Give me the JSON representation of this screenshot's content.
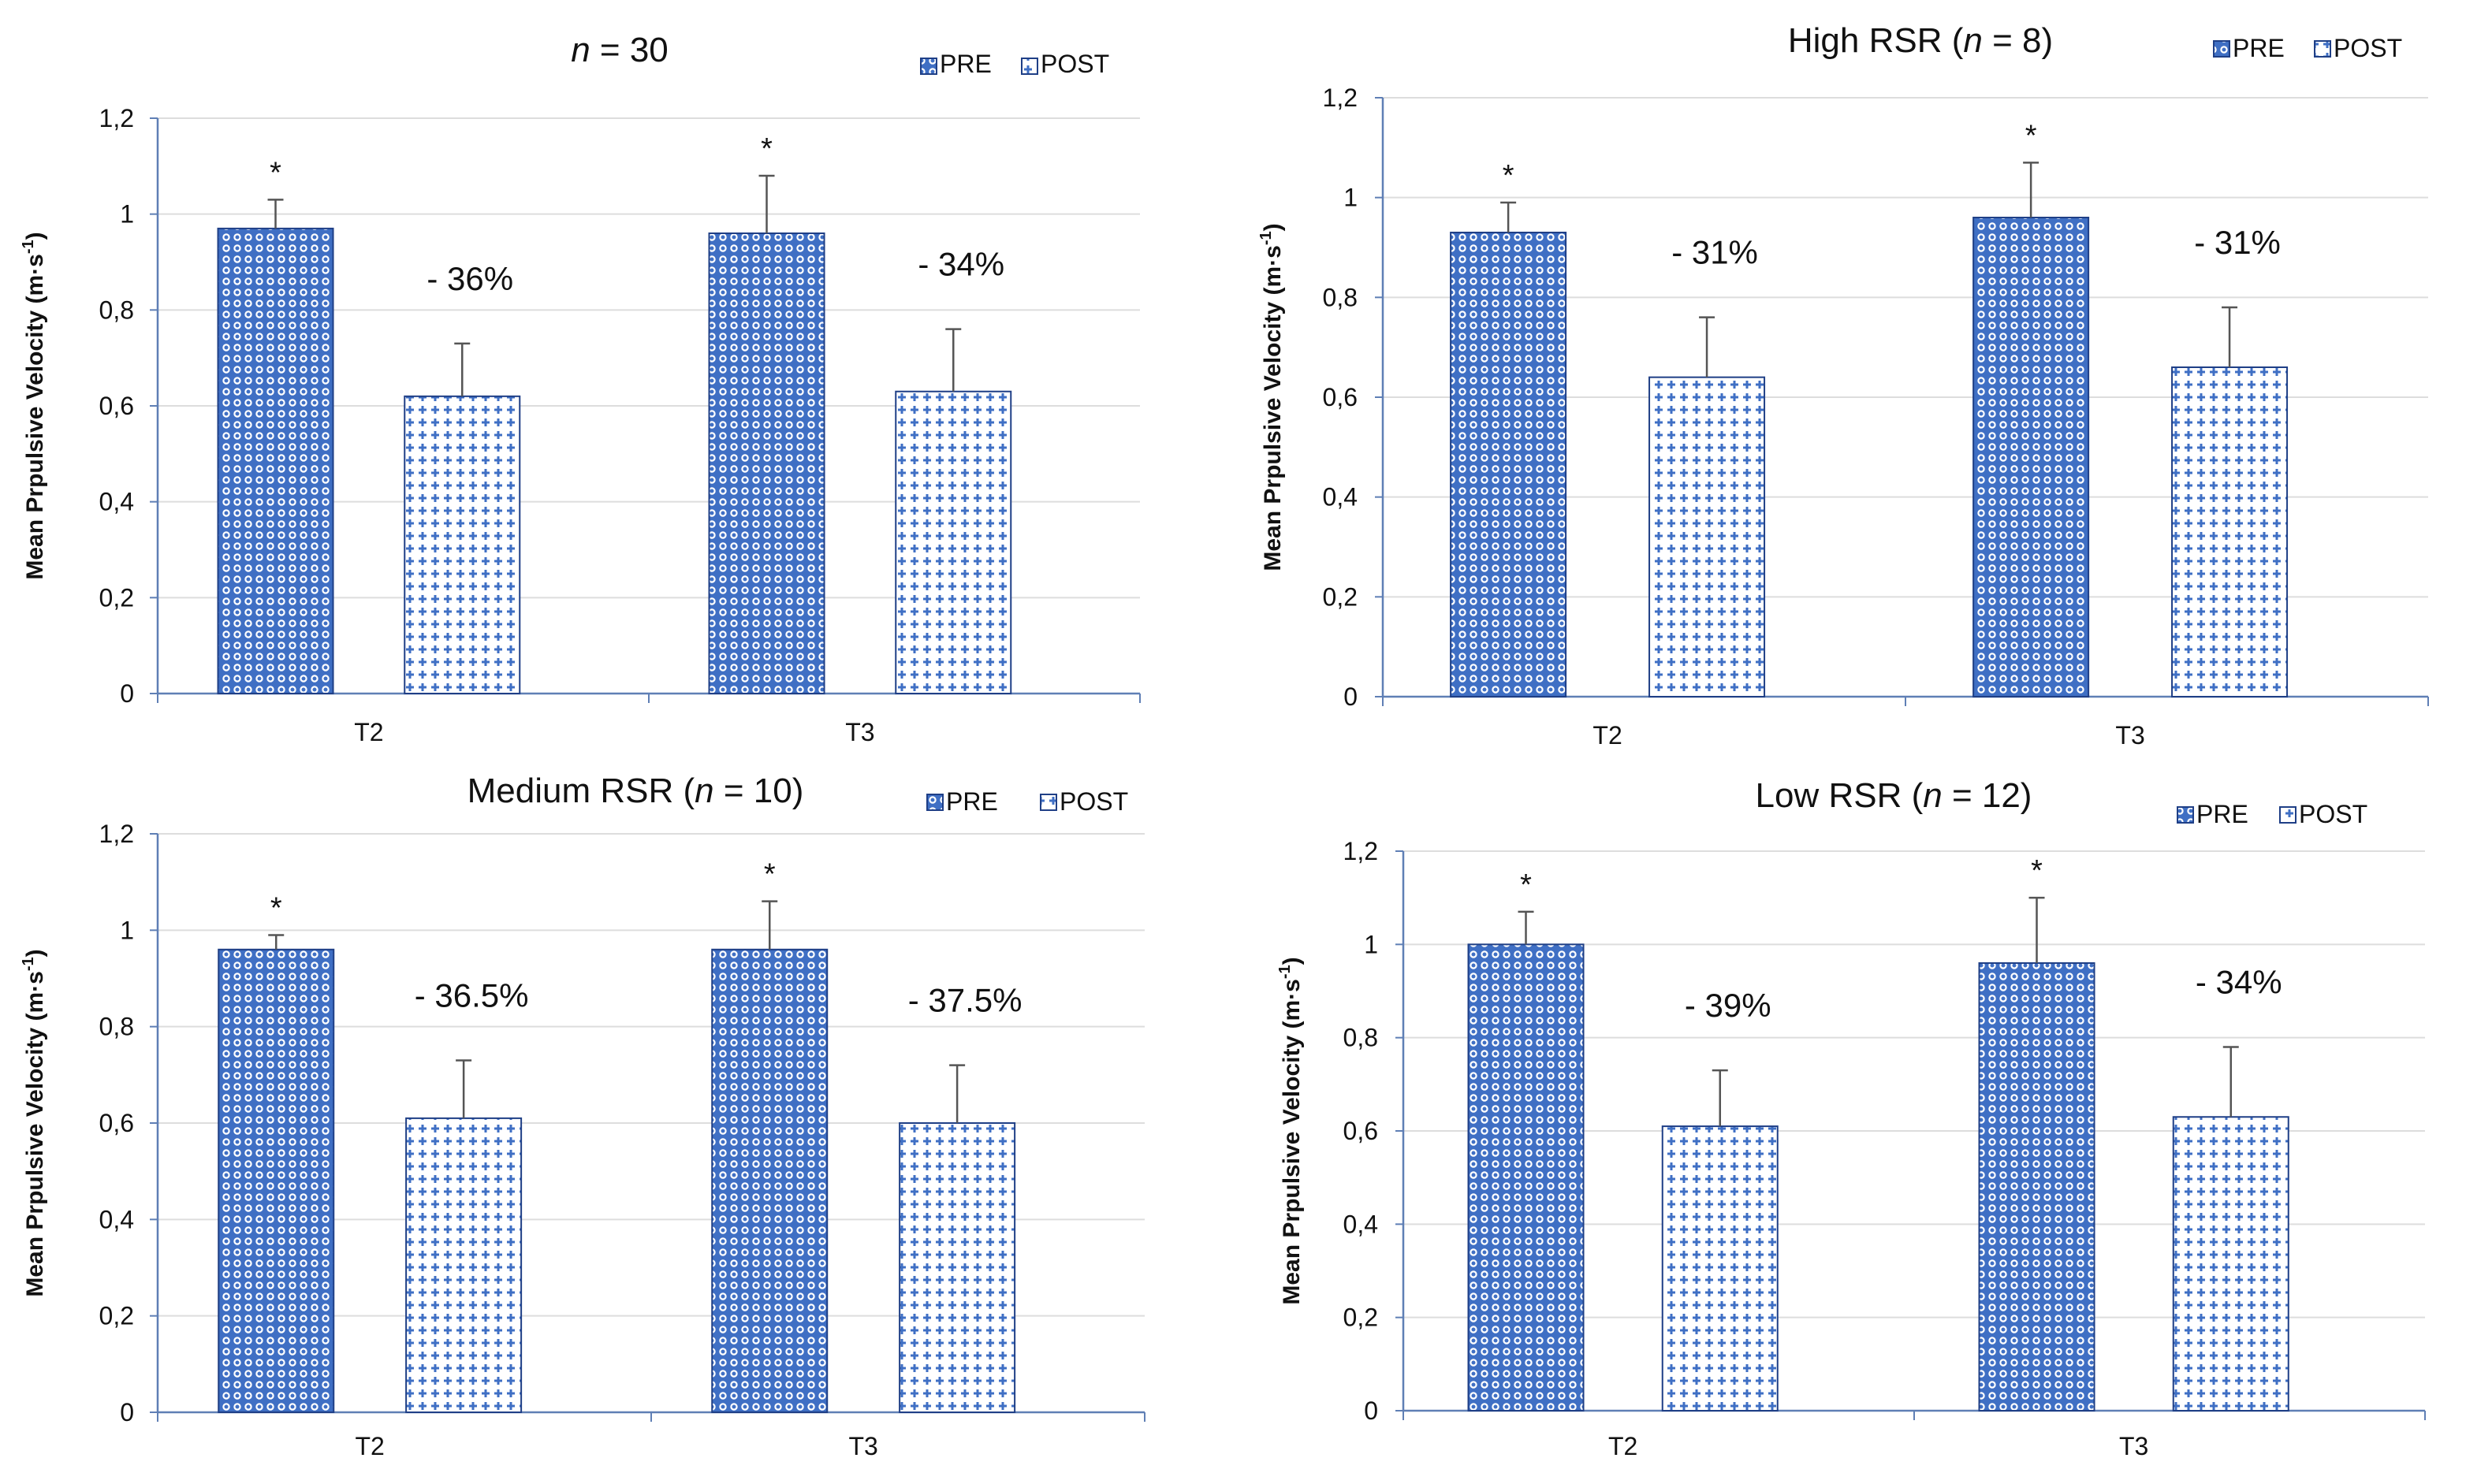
{
  "figure": {
    "colors": {
      "bar_fill": "#3f6fc4",
      "bar_dot": "#ffffff",
      "bar_border": "#1f3f86",
      "axis": "#5f7fb5",
      "grid": "#dddddd",
      "error_bar": "#555555",
      "text": "#111111"
    },
    "shared": {
      "ylabel_main": "Mean Prpulsive Velocity (m·s",
      "ylabel_sup": "-1",
      "ylabel_close": ")",
      "yticks": [
        "0",
        "0,2",
        "0,4",
        "0,6",
        "0,8",
        "1",
        "1,2"
      ],
      "ytick_values": [
        0,
        0.2,
        0.4,
        0.6,
        0.8,
        1.0,
        1.2
      ]
    }
  },
  "chart_data": [
    {
      "type": "bar",
      "title_prefix": "",
      "title_italic": "n",
      "title_suffix": " = 30",
      "categories": [
        "T2",
        "T3"
      ],
      "series": [
        {
          "name": "PRE",
          "values": [
            0.97,
            0.96
          ],
          "errors": [
            0.06,
            0.12
          ],
          "marker": "*"
        },
        {
          "name": "POST",
          "values": [
            0.62,
            0.63
          ],
          "errors": [
            0.11,
            0.13
          ]
        }
      ],
      "annotations": [
        "- 36%",
        "- 34%"
      ],
      "ylim": [
        0,
        1.2
      ],
      "ylabel": "Mean Prpulsive Velocity (m·s-1)",
      "grid": true,
      "legend": "top-right"
    },
    {
      "type": "bar",
      "title_prefix": "High RSR (",
      "title_italic": "n",
      "title_suffix": " = 8)",
      "categories": [
        "T2",
        "T3"
      ],
      "series": [
        {
          "name": "PRE",
          "values": [
            0.93,
            0.96
          ],
          "errors": [
            0.06,
            0.11
          ],
          "marker": "*"
        },
        {
          "name": "POST",
          "values": [
            0.64,
            0.66
          ],
          "errors": [
            0.12,
            0.12
          ]
        }
      ],
      "annotations": [
        "- 31%",
        "- 31%"
      ],
      "ylim": [
        0,
        1.2
      ],
      "ylabel": "Mean Prpulsive Velocity (m·s-1)",
      "grid": true,
      "legend": "top-right"
    },
    {
      "type": "bar",
      "title_prefix": "Medium RSR (",
      "title_italic": "n",
      "title_suffix": " = 10)",
      "categories": [
        "T2",
        "T3"
      ],
      "series": [
        {
          "name": "PRE",
          "values": [
            0.96,
            0.96
          ],
          "errors": [
            0.03,
            0.1
          ],
          "marker": "*"
        },
        {
          "name": "POST",
          "values": [
            0.61,
            0.6
          ],
          "errors": [
            0.12,
            0.12
          ]
        }
      ],
      "annotations": [
        "- 36.5%",
        "- 37.5%"
      ],
      "ylim": [
        0,
        1.2
      ],
      "ylabel": "Mean Prpulsive Velocity (m·s-1)",
      "grid": true,
      "legend": "top-right"
    },
    {
      "type": "bar",
      "title_prefix": "Low RSR (",
      "title_italic": "n",
      "title_suffix": " = 12)",
      "categories": [
        "T2",
        "T3"
      ],
      "series": [
        {
          "name": "PRE",
          "values": [
            1.0,
            0.96
          ],
          "errors": [
            0.07,
            0.14
          ],
          "marker": "*"
        },
        {
          "name": "POST",
          "values": [
            0.61,
            0.63
          ],
          "errors": [
            0.12,
            0.15
          ]
        }
      ],
      "annotations": [
        "- 39%",
        "- 34%"
      ],
      "ylim": [
        0,
        1.2
      ],
      "ylabel": "Mean Prpulsive Velocity (m·s-1)",
      "grid": true,
      "legend": "top-right"
    }
  ]
}
